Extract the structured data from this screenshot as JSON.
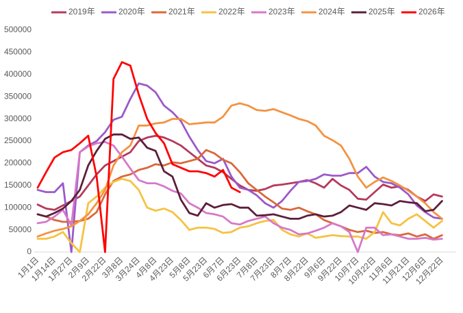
{
  "chart_data": {
    "type": "line",
    "categories": [
      "1月1日",
      null,
      "1月14日",
      null,
      "1月27日",
      null,
      "2月9日",
      null,
      "2月22日",
      null,
      "3月8日",
      null,
      "3月24日",
      null,
      "4月8日",
      null,
      "4月23日",
      null,
      "5月8日",
      null,
      "5月23日",
      null,
      "6月7日",
      null,
      "6月23日",
      null,
      "7月8日",
      null,
      "7月23日",
      null,
      "8月7日",
      null,
      "8月22日",
      null,
      "9月6日",
      null,
      "9月22日",
      null,
      "10月7日",
      null,
      "10月22日",
      null,
      "11月6日",
      null,
      "11月21日",
      null,
      "12月6日",
      null,
      "12月22日"
    ],
    "ylim": [
      0,
      500000
    ],
    "yticks": [
      0,
      50000,
      100000,
      150000,
      200000,
      250000,
      300000,
      350000,
      400000,
      450000,
      500000
    ],
    "legend": "top",
    "series": [
      {
        "name": "2019年",
        "color": "#b5395c",
        "values": [
          107000,
          98000,
          95000,
          105000,
          115000,
          125000,
          150000,
          175000,
          195000,
          205000,
          215000,
          225000,
          250000,
          258000,
          262000,
          258000,
          250000,
          240000,
          225000,
          210000,
          195000,
          190000,
          180000,
          165000,
          150000,
          140000,
          138000,
          142000,
          150000,
          152000,
          155000,
          158000,
          162000,
          155000,
          145000,
          165000,
          150000,
          140000,
          120000,
          118000,
          135000,
          152000,
          145000,
          148000,
          140000,
          125000,
          115000,
          130000,
          125000
        ]
      },
      {
        "name": "2020年",
        "color": "#9b59c9",
        "values": [
          140000,
          135000,
          135000,
          155000,
          0,
          225000,
          240000,
          250000,
          270000,
          298000,
          305000,
          345000,
          380000,
          375000,
          360000,
          330000,
          315000,
          295000,
          260000,
          230000,
          205000,
          200000,
          210000,
          170000,
          145000,
          140000,
          128000,
          110000,
          100000,
          115000,
          138000,
          158000,
          160000,
          165000,
          175000,
          172000,
          172000,
          178000,
          178000,
          192000,
          170000,
          158000,
          155000,
          145000,
          130000,
          105000,
          90000,
          78000,
          75000
        ]
      },
      {
        "name": "2021年",
        "color": "#d9683a",
        "values": [
          85000,
          80000,
          72000,
          68000,
          68000,
          70000,
          75000,
          90000,
          130000,
          160000,
          170000,
          175000,
          185000,
          190000,
          198000,
          195000,
          202000,
          200000,
          205000,
          210000,
          230000,
          222000,
          208000,
          200000,
          180000,
          155000,
          140000,
          125000,
          112000,
          98000,
          95000,
          100000,
          92000,
          85000,
          72000,
          65000,
          58000,
          50000,
          45000,
          48000,
          43000,
          45000,
          40000,
          38000,
          42000,
          35000,
          40000,
          30000,
          38000
        ]
      },
      {
        "name": "2022年",
        "color": "#f5c242",
        "values": [
          30000,
          30000,
          35000,
          45000,
          20000,
          0,
          110000,
          125000,
          145000,
          158000,
          165000,
          160000,
          140000,
          100000,
          93000,
          98000,
          90000,
          72000,
          50000,
          55000,
          55000,
          52000,
          43000,
          45000,
          55000,
          58000,
          65000,
          70000,
          72000,
          50000,
          40000,
          35000,
          42000,
          32000,
          35000,
          38000,
          36000,
          35000,
          35000,
          30000,
          45000,
          90000,
          65000,
          60000,
          75000,
          85000,
          70000,
          55000,
          70000
        ]
      },
      {
        "name": "2023年",
        "color": "#d678c9",
        "values": [
          65000,
          68000,
          80000,
          95000,
          60000,
          225000,
          238000,
          245000,
          248000,
          240000,
          215000,
          188000,
          162000,
          155000,
          155000,
          148000,
          138000,
          132000,
          110000,
          100000,
          88000,
          85000,
          80000,
          65000,
          62000,
          70000,
          75000,
          80000,
          65000,
          55000,
          50000,
          40000,
          42000,
          48000,
          55000,
          65000,
          58000,
          45000,
          0,
          55000,
          55000,
          38000,
          40000,
          35000,
          30000,
          30000,
          32000,
          28000,
          30000
        ]
      },
      {
        "name": "2024年",
        "color": "#f39340",
        "values": [
          35000,
          42000,
          48000,
          52000,
          58000,
          70000,
          85000,
          110000,
          140000,
          195000,
          225000,
          240000,
          285000,
          285000,
          290000,
          292000,
          300000,
          300000,
          288000,
          290000,
          292000,
          292000,
          305000,
          330000,
          335000,
          330000,
          320000,
          318000,
          322000,
          315000,
          308000,
          300000,
          295000,
          285000,
          262000,
          252000,
          240000,
          210000,
          170000,
          145000,
          158000,
          168000,
          160000,
          150000,
          138000,
          125000,
          110000,
          90000,
          75000
        ]
      },
      {
        "name": "2025年",
        "color": "#5b1f3a",
        "values": [
          85000,
          80000,
          88000,
          98000,
          115000,
          140000,
          195000,
          228000,
          255000,
          265000,
          265000,
          255000,
          258000,
          235000,
          228000,
          182000,
          170000,
          118000,
          88000,
          82000,
          110000,
          100000,
          106000,
          108000,
          100000,
          100000,
          82000,
          83000,
          85000,
          80000,
          75000,
          75000,
          82000,
          85000,
          80000,
          82000,
          90000,
          105000,
          100000,
          95000,
          110000,
          108000,
          105000,
          115000,
          112000,
          110000,
          92000,
          95000,
          115000
        ]
      },
      {
        "name": "2026年",
        "color": "#ff0000",
        "values": [
          145000,
          180000,
          213000,
          225000,
          230000,
          245000,
          262000,
          170000,
          0,
          390000,
          428000,
          420000,
          355000,
          300000,
          268000,
          245000,
          198000,
          190000,
          182000,
          182000,
          178000,
          170000,
          185000,
          145000,
          135000,
          null,
          null,
          null,
          null,
          null,
          null,
          null,
          null,
          null,
          null,
          null,
          null,
          null,
          null,
          null,
          null,
          null,
          null,
          null,
          null,
          null,
          null,
          null,
          null
        ]
      }
    ]
  }
}
